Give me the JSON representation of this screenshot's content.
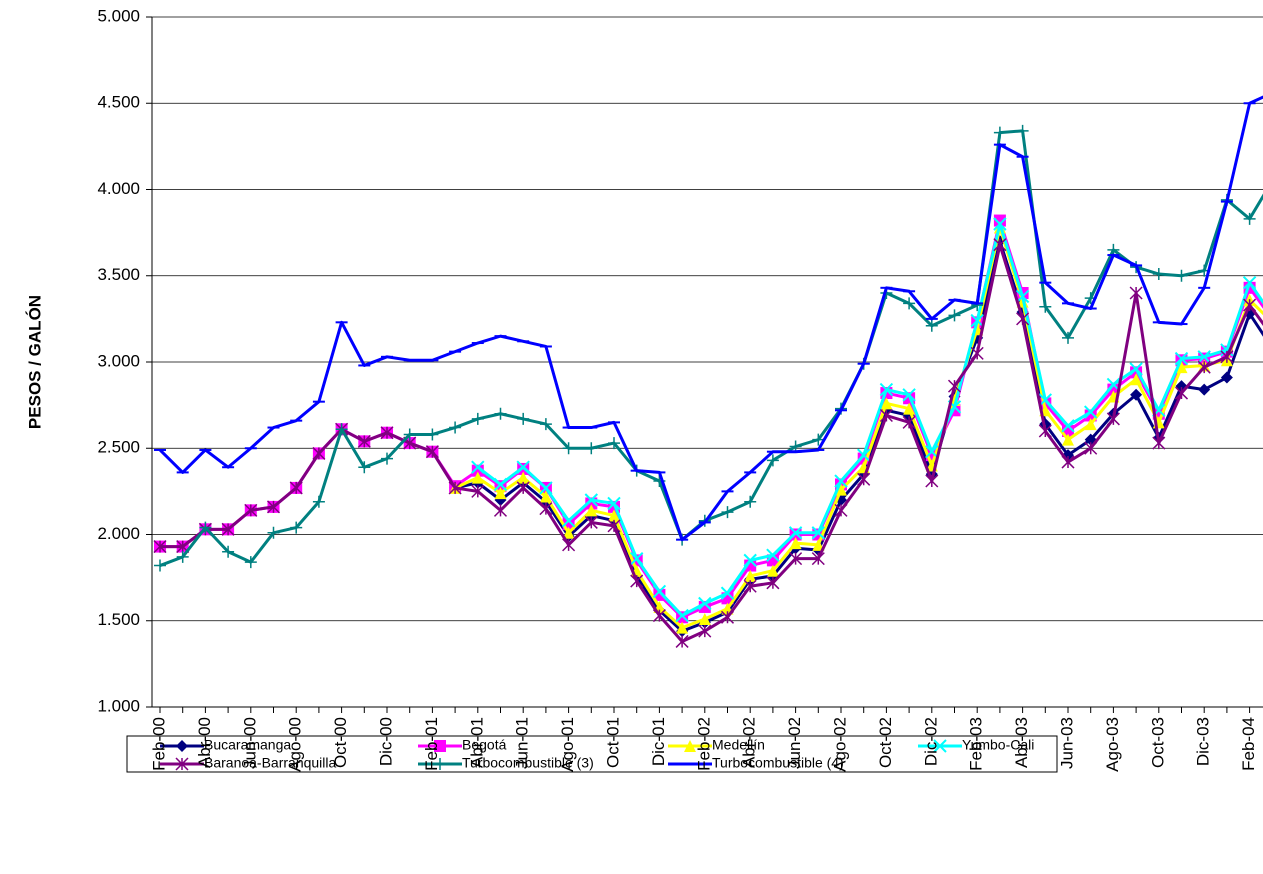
{
  "chart_data": {
    "type": "line",
    "y_label": "PESOS / GALÓN",
    "categories": [
      "Feb-00",
      null,
      "Abr-00",
      null,
      "Jun-00",
      null,
      "Ago-00",
      null,
      "Oct-00",
      null,
      "Dic-00",
      null,
      "Feb-01",
      null,
      "Abr-01",
      null,
      "Jun-01",
      null,
      "Ago-01",
      null,
      "Oct-01",
      null,
      "Dic-01",
      null,
      "Feb-02",
      null,
      "Abr-02",
      null,
      "Jun-02",
      null,
      "Ago-02",
      null,
      "Oct-02",
      null,
      "Dic-02",
      null,
      "Feb-03",
      null,
      "Abr-03",
      null,
      "Jun-03",
      null,
      "Ago-03",
      null,
      "Oct-03",
      null,
      "Dic-03",
      null,
      "Feb-04",
      null
    ],
    "ylim": [
      1000,
      5000
    ],
    "yticks": [
      {
        "value": 1000,
        "label": "1.000"
      },
      {
        "value": 1500,
        "label": "1.500"
      },
      {
        "value": 2000,
        "label": "2.000"
      },
      {
        "value": 2500,
        "label": "2.500"
      },
      {
        "value": 3000,
        "label": "3.000"
      },
      {
        "value": 3500,
        "label": "3.500"
      },
      {
        "value": 4000,
        "label": "4.000"
      },
      {
        "value": 4500,
        "label": "4.500"
      },
      {
        "value": 5000,
        "label": "5.000"
      }
    ],
    "grid": true,
    "legend": "bottom",
    "series": [
      {
        "name": "Bucaramanga",
        "color": "#000080",
        "marker": "diamond",
        "values": [
          null,
          null,
          null,
          null,
          null,
          null,
          null,
          null,
          null,
          null,
          null,
          null,
          null,
          2270,
          2300,
          2200,
          2300,
          2190,
          1990,
          2110,
          2080,
          1760,
          1560,
          1440,
          1490,
          1550,
          1740,
          1760,
          1920,
          1910,
          2200,
          2350,
          2720,
          2690,
          2350,
          2800,
          3140,
          3700,
          3290,
          2640,
          2460,
          2550,
          2700,
          2810,
          2560,
          2860,
          2840,
          2910,
          3280,
          3080
        ]
      },
      {
        "name": "Bogotá",
        "color": "#ff00ff",
        "marker": "square",
        "values": [
          1930,
          1930,
          2030,
          2030,
          2140,
          2160,
          2270,
          2470,
          2610,
          2540,
          2590,
          2530,
          2480,
          2280,
          2370,
          2280,
          2380,
          2270,
          2060,
          2180,
          2160,
          1850,
          1650,
          1520,
          1580,
          1630,
          1820,
          1850,
          2000,
          2000,
          2290,
          2440,
          2820,
          2790,
          2460,
          2720,
          3230,
          3820,
          3400,
          2760,
          2600,
          2690,
          2840,
          2940,
          2700,
          3010,
          3020,
          3060,
          3430,
          3250
        ]
      },
      {
        "name": "Medellín",
        "color": "#ffff00",
        "marker": "triangle",
        "values": [
          null,
          null,
          null,
          null,
          null,
          null,
          null,
          null,
          null,
          null,
          null,
          null,
          null,
          2270,
          2330,
          2240,
          2330,
          2220,
          2010,
          2140,
          2110,
          1790,
          1580,
          1460,
          1510,
          1570,
          1760,
          1790,
          1950,
          1940,
          2260,
          2390,
          2760,
          2730,
          2400,
          2780,
          3190,
          3780,
          3350,
          2720,
          2550,
          2640,
          2800,
          2900,
          2650,
          2970,
          2980,
          3010,
          3360,
          3230
        ]
      },
      {
        "name": "Yumbo-Cali",
        "color": "#00ffff",
        "marker": "x",
        "values": [
          null,
          null,
          null,
          null,
          null,
          null,
          null,
          null,
          null,
          null,
          null,
          null,
          null,
          null,
          2390,
          2290,
          2390,
          2270,
          2080,
          2200,
          2180,
          1860,
          1670,
          1530,
          1600,
          1660,
          1850,
          1880,
          2010,
          2010,
          2310,
          2460,
          2840,
          2810,
          2480,
          2740,
          3240,
          3800,
          3380,
          2780,
          2630,
          2710,
          2870,
          2960,
          2720,
          3020,
          3030,
          3070,
          3460,
          3270
        ]
      },
      {
        "name": "Baranoa-Barranquilla",
        "color": "#800080",
        "marker": "star",
        "values": [
          1930,
          1930,
          2030,
          2030,
          2140,
          2160,
          2270,
          2470,
          2610,
          2540,
          2590,
          2530,
          2480,
          2270,
          2250,
          2140,
          2270,
          2150,
          1940,
          2070,
          2050,
          1730,
          1530,
          1380,
          1440,
          1520,
          1700,
          1720,
          1860,
          1860,
          2140,
          2320,
          2690,
          2650,
          2310,
          2860,
          3050,
          3680,
          3250,
          2600,
          2420,
          2500,
          2670,
          3400,
          2530,
          2820,
          2970,
          3030,
          3330,
          3150
        ]
      },
      {
        "name": "Turbocombustible (3)",
        "color": "#008080",
        "marker": "plus",
        "values": [
          1820,
          1870,
          2040,
          1900,
          1840,
          2010,
          2040,
          2190,
          2610,
          2390,
          2440,
          2580,
          2580,
          2620,
          2670,
          2700,
          2670,
          2640,
          2500,
          2500,
          2530,
          2370,
          2310,
          1970,
          2080,
          2130,
          2190,
          2430,
          2510,
          2550,
          2730,
          2990,
          3400,
          3340,
          3210,
          3270,
          3330,
          4330,
          4340,
          3320,
          3140,
          3370,
          3650,
          3550,
          3510,
          3500,
          3530,
          3940,
          3830,
          4050
        ]
      },
      {
        "name": "Turbocombustible (4)",
        "color": "#0000ff",
        "marker": "dash",
        "values": [
          2490,
          2360,
          2490,
          2390,
          2500,
          2620,
          2660,
          2770,
          3230,
          2980,
          3030,
          3010,
          3010,
          3060,
          3110,
          3150,
          3120,
          3090,
          2620,
          2620,
          2650,
          2370,
          2360,
          1970,
          2070,
          2250,
          2360,
          2480,
          2480,
          2490,
          2720,
          2990,
          3430,
          3410,
          3250,
          3360,
          3340,
          4260,
          4190,
          3460,
          3340,
          3310,
          3620,
          3560,
          3230,
          3220,
          3430,
          3930,
          4500,
          4560
        ]
      }
    ]
  }
}
